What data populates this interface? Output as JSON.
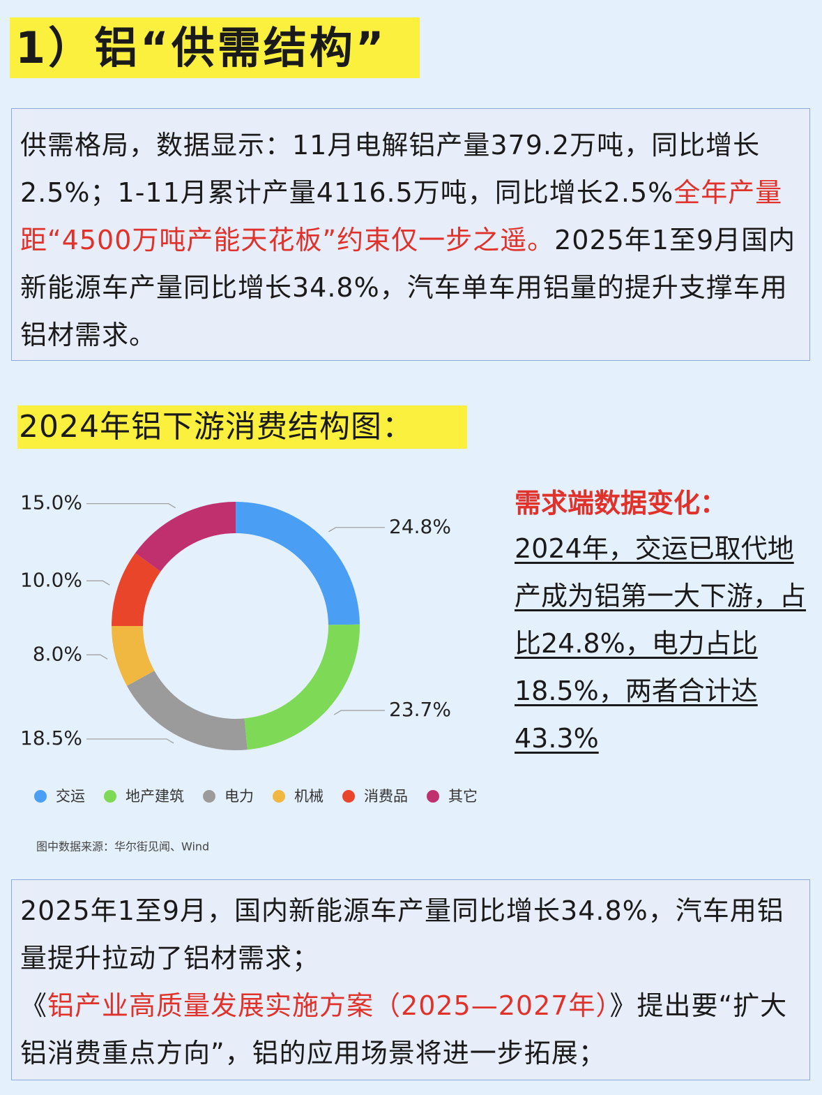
{
  "header": {
    "title": "1）铝“供需结构”"
  },
  "intro": {
    "segments": [
      {
        "text": "供需格局，数据显示：11月电解铝产量379.2万吨，同比增长2.5%；1-11月累计产量4116.5万吨，同比增长2.5%",
        "color": "#1a1a1a"
      },
      {
        "text": "全年产量距“4500万吨产能天花板”约束仅一步之遥。",
        "color": "#e0312a"
      },
      {
        "text": "2025年1至9月国内新能源车产量同比增长34.8%，汽车单车用铝量的提升支撑车用铝材需求。",
        "color": "#1a1a1a"
      }
    ]
  },
  "chart_section": {
    "title": "2024年铝下游消费结构图："
  },
  "chart_data": {
    "type": "donut",
    "categories": [
      "交运",
      "地产建筑",
      "电力",
      "机械",
      "消费品",
      "其它"
    ],
    "values": [
      24.8,
      23.7,
      18.5,
      8.0,
      10.0,
      15.0
    ],
    "value_labels": [
      "24.8%",
      "23.7%",
      "18.5%",
      "8.0%",
      "10.0%",
      "15.0%"
    ],
    "colors": [
      "#4a9ff5",
      "#7ed957",
      "#9b9b9b",
      "#f0b840",
      "#e8452a",
      "#c0306e"
    ],
    "source": "图中数据来源：华尔街见闻、Wind"
  },
  "side_note": {
    "title": "需求端数据变化：",
    "text": "2024年，交运已取代地产成为铝第一大下游，占比24.8%，电力占比18.5%，两者合计达43.3%"
  },
  "footer": {
    "segments": [
      {
        "text": "2025年1至9月，国内新能源车产量同比增长34.8%，汽车用铝量提升拉动了铝材需求；",
        "color": "#1a1a1a",
        "break": true
      },
      {
        "text": "《",
        "color": "#1a1a1a"
      },
      {
        "text": "铝产业高质量发展实施方案（2025—2027年）",
        "color": "#e0312a"
      },
      {
        "text": "》提出要“扩大铝消费重点方向”，铝的应用场景将进一步拓展；",
        "color": "#1a1a1a"
      }
    ]
  }
}
